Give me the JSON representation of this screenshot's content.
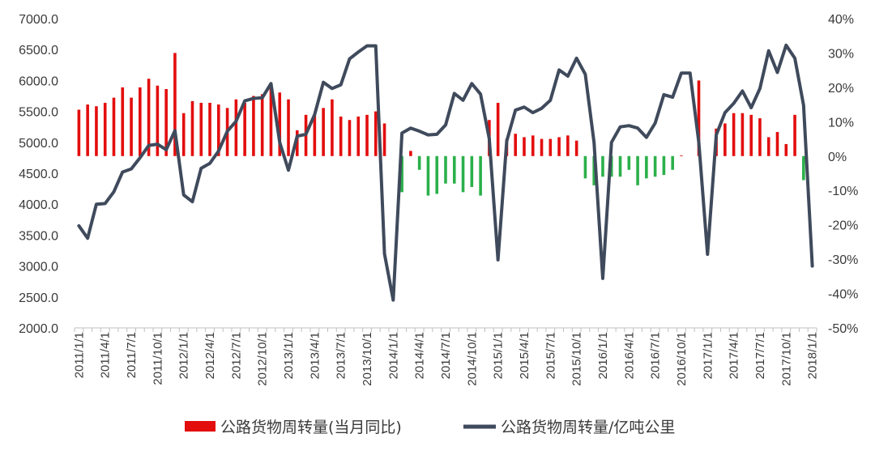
{
  "chart_data": {
    "type": "bar+line",
    "colors": {
      "bar_positive": "#e30d0d",
      "bar_negative": "#2bb04a",
      "line": "#3f4a5c"
    },
    "y_left": {
      "min": 2000,
      "max": 7000,
      "ticks": [
        "7000.0",
        "6500.0",
        "6000.0",
        "5500.0",
        "5000.0",
        "4500.0",
        "4000.0",
        "3500.0",
        "3000.0",
        "2500.0",
        "2000.0"
      ]
    },
    "y_right": {
      "min": -50,
      "max": 40,
      "ticks": [
        "40%",
        "30%",
        "20%",
        "10%",
        "0%",
        "-10%",
        "-20%",
        "-30%",
        "-40%",
        "-50%"
      ]
    },
    "x_labels": [
      "2011/1/1",
      "2011/4/1",
      "2011/7/1",
      "2011/10/1",
      "2012/1/1",
      "2012/4/1",
      "2012/7/1",
      "2012/10/1",
      "2013/1/1",
      "2013/4/1",
      "2013/7/1",
      "2013/10/1",
      "2014/1/1",
      "2014/4/1",
      "2014/7/1",
      "2014/10/1",
      "2015/1/1",
      "2015/4/1",
      "2015/7/1",
      "2015/10/1",
      "2016/1/1",
      "2016/4/1",
      "2016/7/1",
      "2016/10/1",
      "2017/1/1",
      "2017/4/1",
      "2017/7/1",
      "2017/10/1",
      "2018/1/1"
    ],
    "series": [
      {
        "name": "公路货物周转量(当月同比)",
        "type": "bar",
        "axis": "right",
        "values": [
          13.5,
          15,
          14.5,
          15.5,
          17,
          20,
          17,
          20,
          22.5,
          20.5,
          19.5,
          30,
          12.5,
          16,
          15.5,
          15.5,
          15,
          14,
          16.5,
          15.5,
          17.5,
          18,
          20.5,
          18.5,
          16.5,
          7.5,
          12,
          12,
          14,
          16.5,
          11.5,
          10.5,
          11.5,
          12,
          13,
          9.5,
          null,
          -10.5,
          1.5,
          -4,
          -11.5,
          -11,
          -8,
          -8,
          -10.5,
          -9,
          -11.5,
          10.5,
          15.5,
          5,
          6.5,
          5.5,
          6,
          5,
          5,
          5.5,
          6,
          4.5,
          -6.5,
          -8.5,
          -6,
          -6,
          -6,
          -4,
          -8.5,
          -6.5,
          -6,
          -5.5,
          -4,
          0.2,
          null,
          22,
          null,
          8,
          9.5,
          12.5,
          12.5,
          12,
          11,
          5.5,
          7,
          3.5,
          12,
          -7
        ]
      },
      {
        "name": "公路货物周转量/亿吨公里",
        "type": "line",
        "axis": "left",
        "values": [
          3650,
          3450,
          4000,
          4010,
          4200,
          4520,
          4570,
          4750,
          4950,
          4970,
          4880,
          5190,
          4150,
          4040,
          4580,
          4660,
          4860,
          5180,
          5340,
          5670,
          5710,
          5720,
          5950,
          5000,
          4550,
          5100,
          5130,
          5450,
          5970,
          5870,
          5930,
          6350,
          6460,
          6560,
          6560,
          3200,
          2450,
          5150,
          5230,
          5180,
          5120,
          5130,
          5280,
          5790,
          5680,
          5950,
          5780,
          5060,
          3100,
          5020,
          5520,
          5570,
          5480,
          5550,
          5680,
          6170,
          6070,
          6360,
          6100,
          5000,
          2800,
          5000,
          5250,
          5270,
          5230,
          5080,
          5310,
          5770,
          5730,
          6120,
          6120,
          5000,
          3190,
          5120,
          5480,
          5630,
          5830,
          5560,
          5870,
          6480,
          6130,
          6570,
          6360,
          5600,
          3000
        ]
      }
    ],
    "legend": [
      {
        "label": "公路货物周转量(当月同比)",
        "symbol": "bar"
      },
      {
        "label": "公路货物周转量/亿吨公里",
        "symbol": "line"
      }
    ],
    "legend_position": "bottom"
  }
}
